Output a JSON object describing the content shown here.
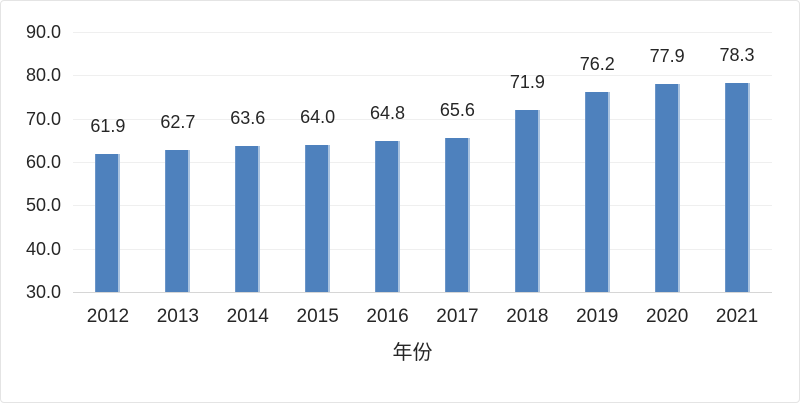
{
  "chart_data": {
    "type": "bar",
    "title": "",
    "xlabel": "年份",
    "ylabel": "",
    "categories": [
      "2012",
      "2013",
      "2014",
      "2015",
      "2016",
      "2017",
      "2018",
      "2019",
      "2020",
      "2021"
    ],
    "values": [
      61.9,
      62.7,
      63.6,
      64.0,
      64.8,
      65.6,
      71.9,
      76.2,
      77.9,
      78.3
    ],
    "value_labels": [
      "61.9",
      "62.7",
      "63.6",
      "64.0",
      "64.8",
      "65.6",
      "71.9",
      "76.2",
      "77.9",
      "78.3"
    ],
    "ylim": [
      30.0,
      90.0
    ],
    "ytick_step": 10.0,
    "ytick_labels": [
      "30.0",
      "40.0",
      "50.0",
      "60.0",
      "70.0",
      "80.0",
      "90.0"
    ],
    "grid": true,
    "legend": "none",
    "bar_color": "#4e81bd",
    "text_color": "#262626",
    "gridline_color": "#efefef"
  }
}
